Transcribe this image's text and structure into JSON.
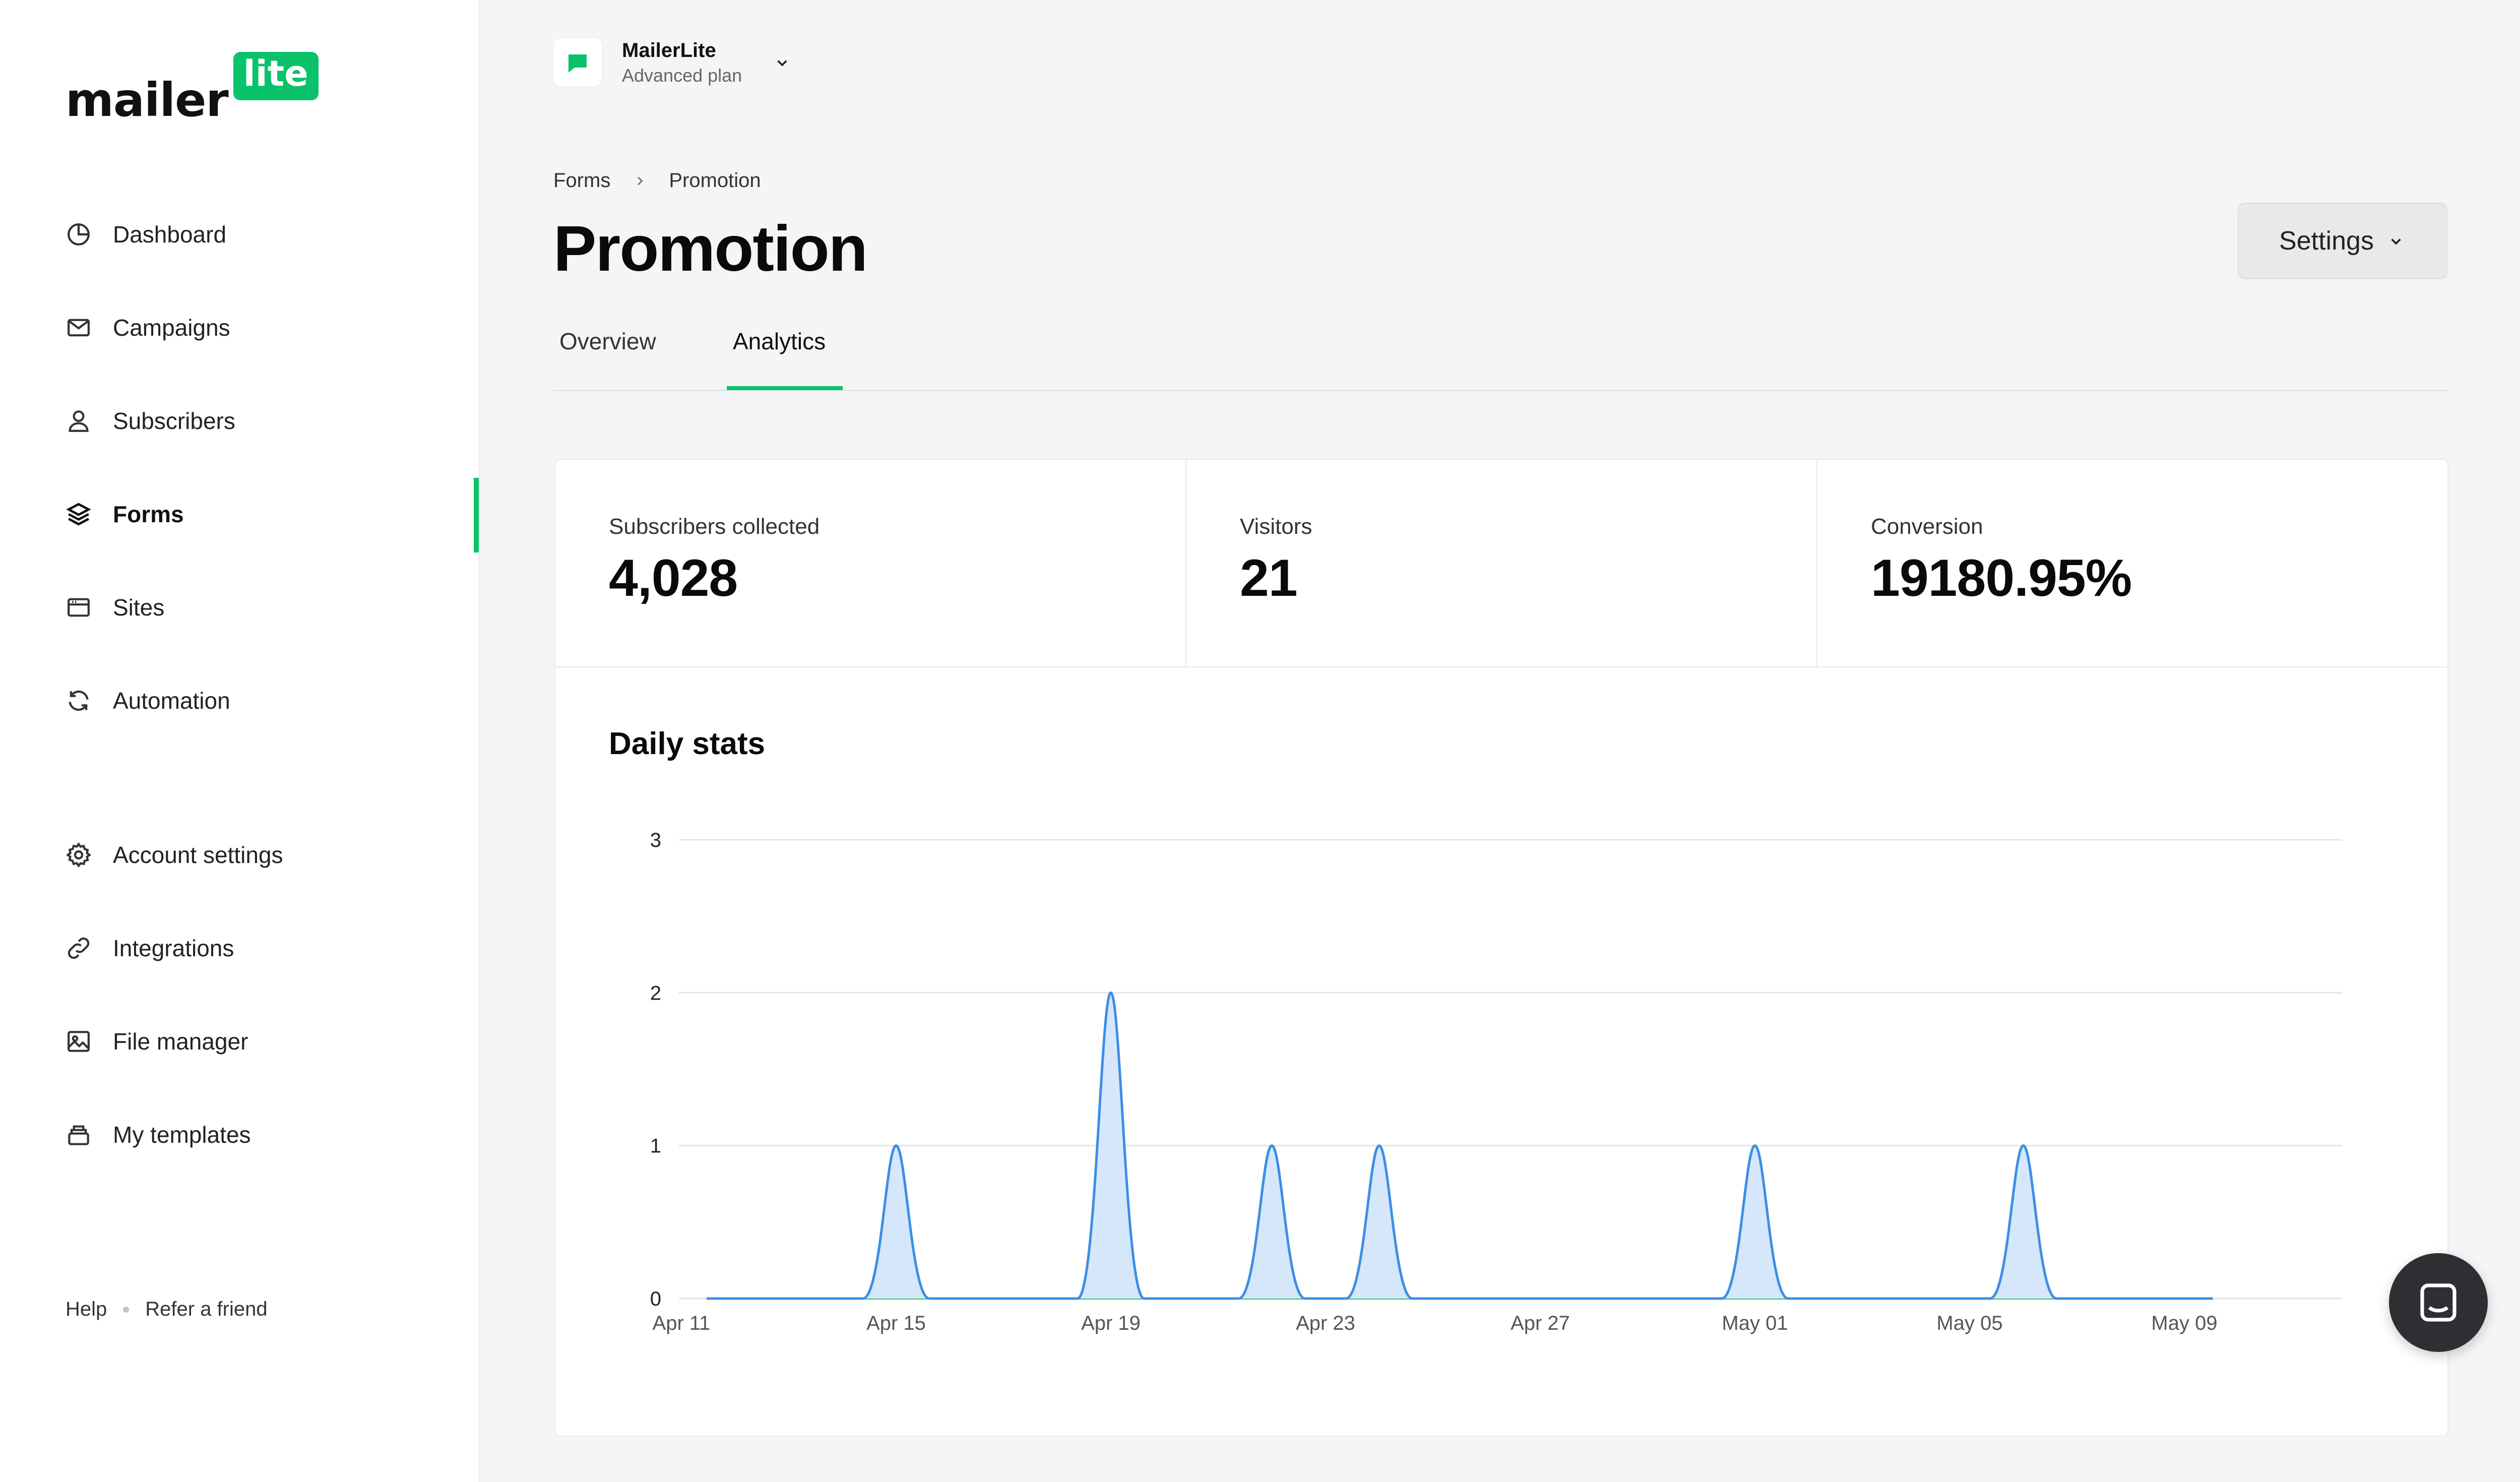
{
  "logo": {
    "mailer": "mailer",
    "lite": "lite"
  },
  "sidebar": {
    "items": [
      {
        "label": "Dashboard",
        "icon": "dashboard-icon"
      },
      {
        "label": "Campaigns",
        "icon": "mail-icon"
      },
      {
        "label": "Subscribers",
        "icon": "user-icon"
      },
      {
        "label": "Forms",
        "icon": "layers-icon",
        "active": true
      },
      {
        "label": "Sites",
        "icon": "browser-icon"
      },
      {
        "label": "Automation",
        "icon": "refresh-icon"
      },
      {
        "label": "Account settings",
        "icon": "gear-icon"
      },
      {
        "label": "Integrations",
        "icon": "link-icon"
      },
      {
        "label": "File manager",
        "icon": "image-icon"
      },
      {
        "label": "My templates",
        "icon": "stack-icon"
      }
    ],
    "footer": {
      "help": "Help",
      "refer": "Refer a friend"
    }
  },
  "account": {
    "name": "MailerLite",
    "plan": "Advanced plan"
  },
  "breadcrumb": {
    "parent": "Forms",
    "current": "Promotion"
  },
  "page": {
    "title": "Promotion",
    "settings_label": "Settings"
  },
  "tabs": [
    {
      "label": "Overview",
      "active": false
    },
    {
      "label": "Analytics",
      "active": true
    }
  ],
  "stats": {
    "subscribers": {
      "label": "Subscribers collected",
      "value": "4,028"
    },
    "visitors": {
      "label": "Visitors",
      "value": "21"
    },
    "conversion": {
      "label": "Conversion",
      "value": "19180.95%"
    }
  },
  "colors": {
    "accent": "#09c269",
    "chart_line": "#3d8ee6",
    "chart_fill": "#d6e7fb"
  },
  "chart_data": {
    "type": "area",
    "title": "Daily stats",
    "x": [
      "Apr 11",
      "Apr 12",
      "Apr 13",
      "Apr 14",
      "Apr 15",
      "Apr 16",
      "Apr 17",
      "Apr 18",
      "Apr 19",
      "Apr 20",
      "Apr 21",
      "Apr 22",
      "Apr 23",
      "Apr 24",
      "Apr 25",
      "Apr 26",
      "Apr 27",
      "Apr 28",
      "Apr 29",
      "Apr 30",
      "May 01",
      "May 02",
      "May 03",
      "May 04",
      "May 05",
      "May 06",
      "May 07",
      "May 08",
      "May 09",
      "May 10"
    ],
    "values": [
      0,
      0,
      0,
      0,
      1,
      0,
      0,
      0,
      2,
      0,
      0,
      1,
      0,
      1,
      0,
      0,
      0,
      0,
      0,
      0,
      1,
      0,
      0,
      0,
      0,
      1,
      0,
      0,
      0,
      0
    ],
    "x_ticks": [
      "Apr 11",
      "Apr 15",
      "Apr 19",
      "Apr 23",
      "Apr 27",
      "May 01",
      "May 05",
      "May 09"
    ],
    "y_ticks": [
      "0",
      "1",
      "2",
      "3"
    ],
    "ylim": [
      0,
      3
    ],
    "grid": true,
    "legend": "none"
  }
}
